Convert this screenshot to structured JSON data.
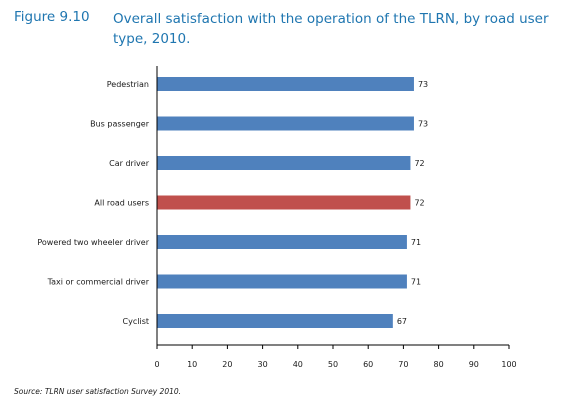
{
  "figure": {
    "label": "Figure 9.10",
    "title_line1": "Overall satisfaction with the operation of the TLRN, by road user",
    "title_line2": "type, 2010."
  },
  "source": "Source: TLRN user satisfaction Survey 2010.",
  "colors": {
    "bar_default": "#4f81bd",
    "bar_highlight": "#c0504d",
    "axis": "#000000"
  },
  "chart_data": {
    "type": "bar",
    "orientation": "horizontal",
    "categories": [
      "Pedestrian",
      "Bus passenger",
      "Car driver",
      "All road users",
      "Powered two wheeler driver",
      "Taxi or commercial driver",
      "Cyclist"
    ],
    "values": [
      73,
      73,
      72,
      72,
      71,
      71,
      67
    ],
    "highlight": [
      "All road users"
    ],
    "xlim": [
      0,
      100
    ],
    "xticks": [
      0,
      10,
      20,
      30,
      40,
      50,
      60,
      70,
      80,
      90,
      100
    ],
    "grid": false,
    "legend": "none"
  }
}
